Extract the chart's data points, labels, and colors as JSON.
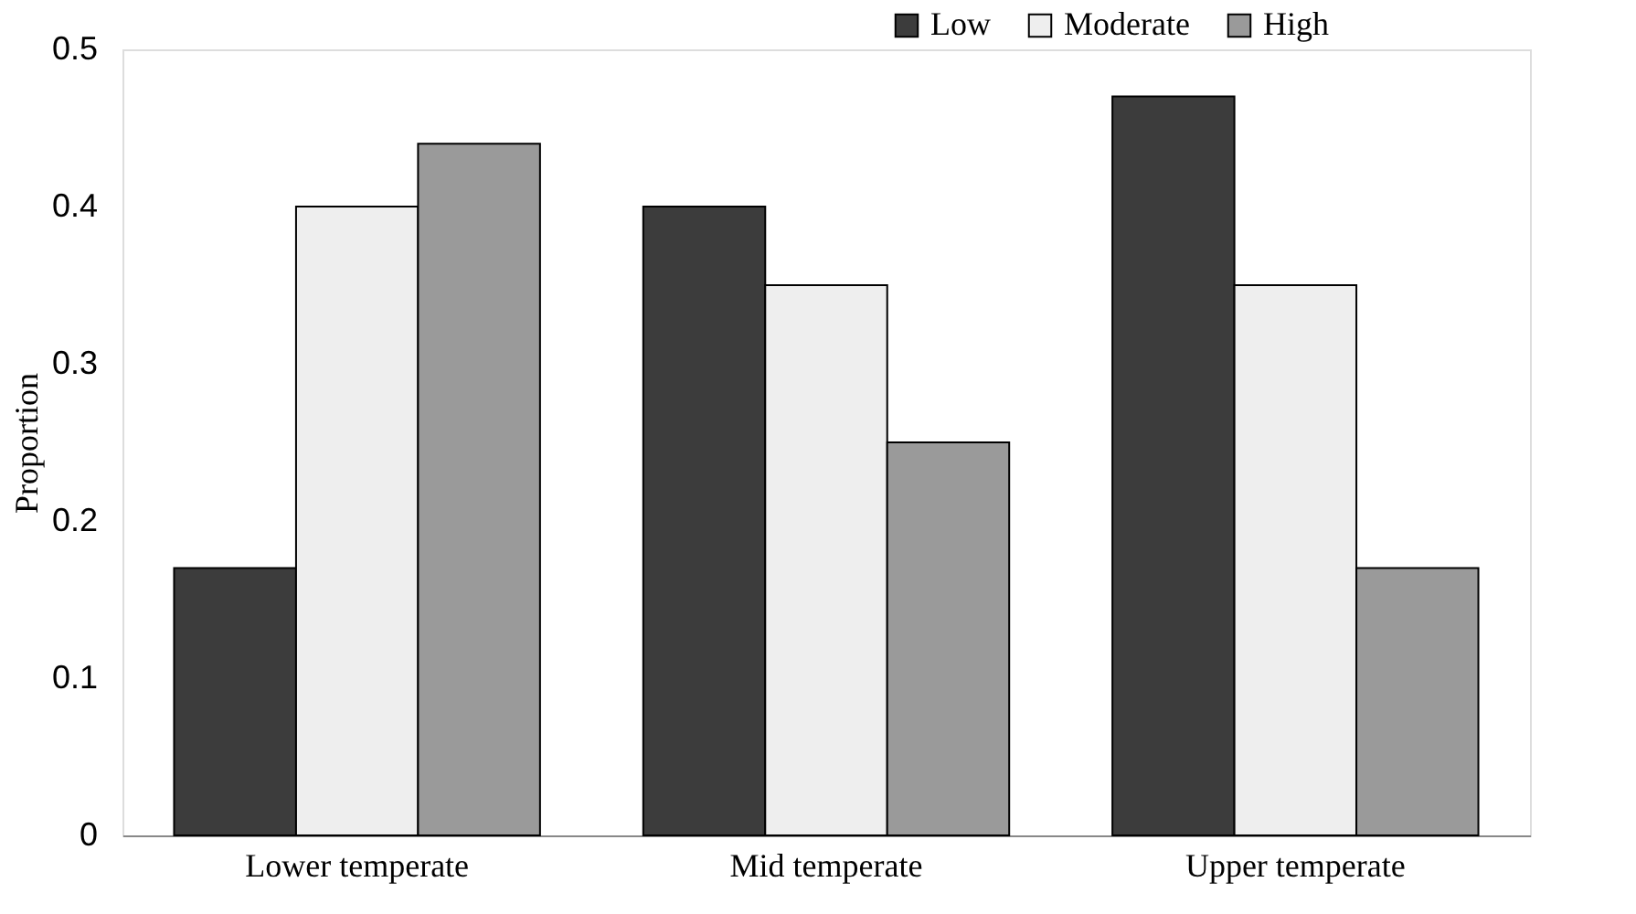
{
  "chart_data": {
    "type": "bar",
    "ylabel": "Proportion",
    "categories": [
      "Lower temperate",
      "Mid temperate",
      "Upper temperate"
    ],
    "series": [
      {
        "name": "Low",
        "color": "#3c3c3c",
        "values": [
          0.17,
          0.4,
          0.47
        ]
      },
      {
        "name": "Moderate",
        "color": "#eeeeee",
        "values": [
          0.4,
          0.35,
          0.35
        ]
      },
      {
        "name": "High",
        "color": "#9a9a9a",
        "values": [
          0.44,
          0.25,
          0.17
        ]
      }
    ],
    "ylim": [
      0,
      0.5
    ],
    "yticks": [
      0,
      0.1,
      0.2,
      0.3,
      0.4,
      0.5
    ],
    "grid": false,
    "legend": "top right"
  }
}
